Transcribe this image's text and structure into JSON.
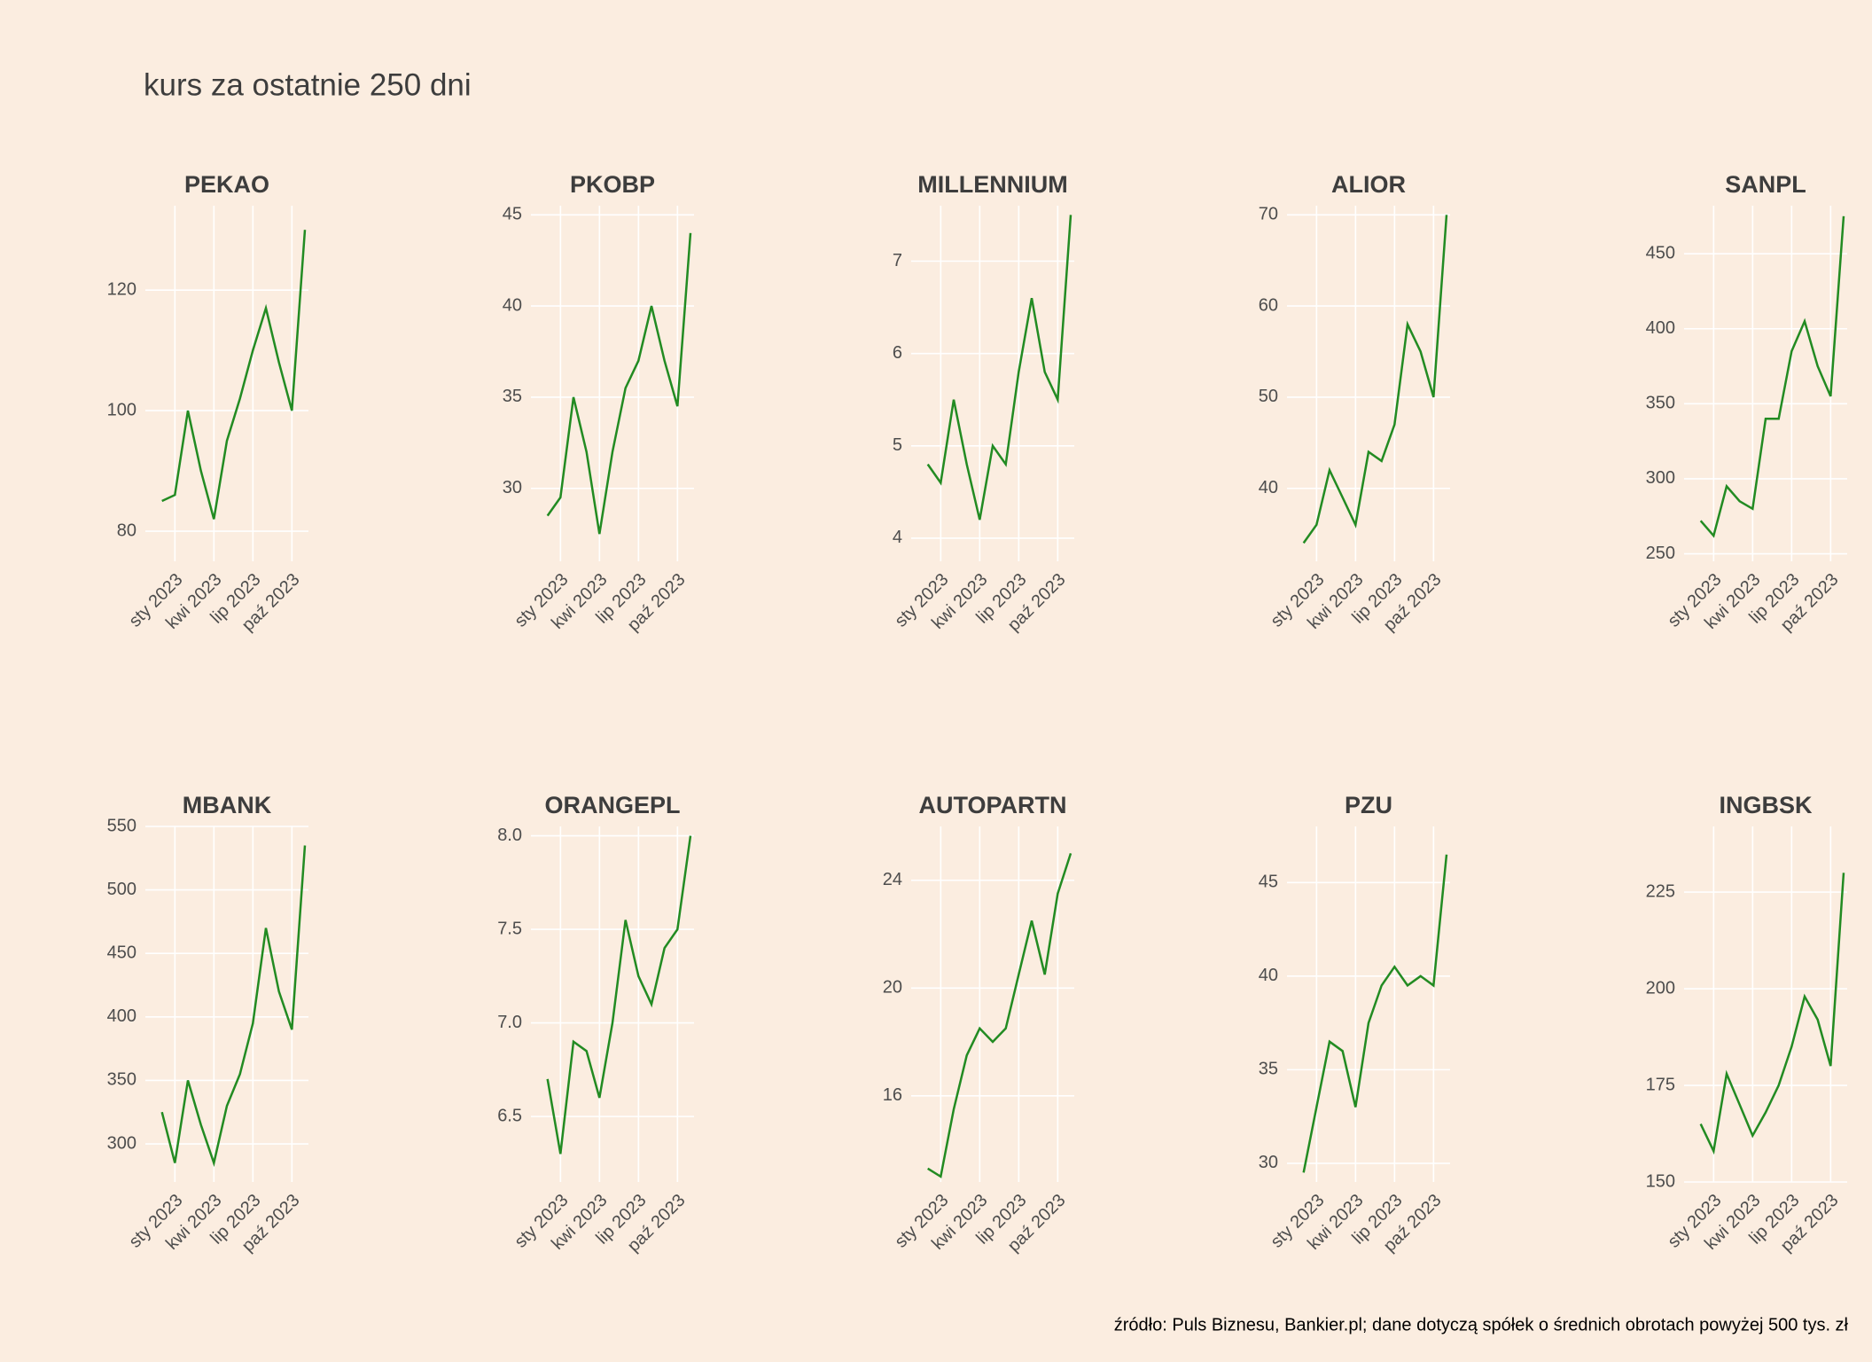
{
  "title": "kurs za ostatnie 250 dni",
  "caption": "źródło: Puls Biznesu, Bankier.pl; dane dotyczą spółek o średnich obrotach powyżej 500 tys. zł",
  "chart_data": [
    {
      "type": "line",
      "title": "PEKAO",
      "color": "#228b22",
      "grid": true,
      "x": [
        "2022-12",
        "2023-01",
        "2023-02",
        "2023-03",
        "2023-04",
        "2023-05",
        "2023-06",
        "2023-07",
        "2023-08",
        "2023-09",
        "2023-10",
        "2023-11"
      ],
      "values": [
        85,
        86,
        100,
        90,
        82,
        95,
        102,
        110,
        117,
        108,
        100,
        130
      ],
      "xlim": [
        "2022-11",
        "2023-11"
      ],
      "ylim": [
        75,
        134
      ],
      "yticks": [
        80,
        100,
        120
      ],
      "xticks": [
        {
          "value": "2023-01",
          "label": "sty 2023"
        },
        {
          "value": "2023-04",
          "label": "kwi 2023"
        },
        {
          "value": "2023-07",
          "label": "lip 2023"
        },
        {
          "value": "2023-10",
          "label": "paź 2023"
        }
      ]
    },
    {
      "type": "line",
      "title": "PKOBP",
      "color": "#228b22",
      "grid": true,
      "x": [
        "2022-12",
        "2023-01",
        "2023-02",
        "2023-03",
        "2023-04",
        "2023-05",
        "2023-06",
        "2023-07",
        "2023-08",
        "2023-09",
        "2023-10",
        "2023-11"
      ],
      "values": [
        28.5,
        29.5,
        35,
        32,
        27.5,
        32,
        35.5,
        37,
        40,
        37,
        34.5,
        44
      ],
      "xlim": [
        "2022-11",
        "2023-11"
      ],
      "ylim": [
        26,
        45.5
      ],
      "yticks": [
        30,
        35,
        40,
        45
      ],
      "xticks": [
        {
          "value": "2023-01",
          "label": "sty 2023"
        },
        {
          "value": "2023-04",
          "label": "kwi 2023"
        },
        {
          "value": "2023-07",
          "label": "lip 2023"
        },
        {
          "value": "2023-10",
          "label": "paź 2023"
        }
      ]
    },
    {
      "type": "line",
      "title": "MILLENNIUM",
      "color": "#228b22",
      "grid": true,
      "x": [
        "2022-12",
        "2023-01",
        "2023-02",
        "2023-03",
        "2023-04",
        "2023-05",
        "2023-06",
        "2023-07",
        "2023-08",
        "2023-09",
        "2023-10",
        "2023-11"
      ],
      "values": [
        4.8,
        4.6,
        5.5,
        4.8,
        4.2,
        5.0,
        4.8,
        5.8,
        6.6,
        5.8,
        5.5,
        7.5
      ],
      "xlim": [
        "2022-11",
        "2023-11"
      ],
      "ylim": [
        3.75,
        7.6
      ],
      "yticks": [
        4,
        5,
        6,
        7
      ],
      "xticks": [
        {
          "value": "2023-01",
          "label": "sty 2023"
        },
        {
          "value": "2023-04",
          "label": "kwi 2023"
        },
        {
          "value": "2023-07",
          "label": "lip 2023"
        },
        {
          "value": "2023-10",
          "label": "paź 2023"
        }
      ]
    },
    {
      "type": "line",
      "title": "ALIOR",
      "color": "#228b22",
      "grid": true,
      "x": [
        "2022-12",
        "2023-01",
        "2023-02",
        "2023-03",
        "2023-04",
        "2023-05",
        "2023-06",
        "2023-07",
        "2023-08",
        "2023-09",
        "2023-10",
        "2023-11"
      ],
      "values": [
        34,
        36,
        42,
        39,
        36,
        44,
        43,
        47,
        58,
        55,
        50,
        70
      ],
      "xlim": [
        "2022-11",
        "2023-11"
      ],
      "ylim": [
        32,
        71
      ],
      "yticks": [
        40,
        50,
        60,
        70
      ],
      "xticks": [
        {
          "value": "2023-01",
          "label": "sty 2023"
        },
        {
          "value": "2023-04",
          "label": "kwi 2023"
        },
        {
          "value": "2023-07",
          "label": "lip 2023"
        },
        {
          "value": "2023-10",
          "label": "paź 2023"
        }
      ]
    },
    {
      "type": "line",
      "title": "SANPL",
      "color": "#228b22",
      "grid": true,
      "x": [
        "2022-12",
        "2023-01",
        "2023-02",
        "2023-03",
        "2023-04",
        "2023-05",
        "2023-06",
        "2023-07",
        "2023-08",
        "2023-09",
        "2023-10",
        "2023-11"
      ],
      "values": [
        272,
        262,
        295,
        285,
        280,
        340,
        340,
        385,
        405,
        375,
        355,
        475
      ],
      "xlim": [
        "2022-11",
        "2023-11"
      ],
      "ylim": [
        245,
        482
      ],
      "yticks": [
        250,
        300,
        350,
        400,
        450
      ],
      "xticks": [
        {
          "value": "2023-01",
          "label": "sty 2023"
        },
        {
          "value": "2023-04",
          "label": "kwi 2023"
        },
        {
          "value": "2023-07",
          "label": "lip 2023"
        },
        {
          "value": "2023-10",
          "label": "paź 2023"
        }
      ]
    },
    {
      "type": "line",
      "title": "MBANK",
      "color": "#228b22",
      "grid": true,
      "x": [
        "2022-12",
        "2023-01",
        "2023-02",
        "2023-03",
        "2023-04",
        "2023-05",
        "2023-06",
        "2023-07",
        "2023-08",
        "2023-09",
        "2023-10",
        "2023-11"
      ],
      "values": [
        325,
        285,
        350,
        315,
        285,
        330,
        355,
        395,
        470,
        420,
        390,
        535
      ],
      "xlim": [
        "2022-11",
        "2023-11"
      ],
      "ylim": [
        270,
        550
      ],
      "yticks": [
        300,
        350,
        400,
        450,
        500,
        550
      ],
      "xticks": [
        {
          "value": "2023-01",
          "label": "sty 2023"
        },
        {
          "value": "2023-04",
          "label": "kwi 2023"
        },
        {
          "value": "2023-07",
          "label": "lip 2023"
        },
        {
          "value": "2023-10",
          "label": "paź 2023"
        }
      ]
    },
    {
      "type": "line",
      "title": "ORANGEPL",
      "color": "#228b22",
      "grid": true,
      "x": [
        "2022-12",
        "2023-01",
        "2023-02",
        "2023-03",
        "2023-04",
        "2023-05",
        "2023-06",
        "2023-07",
        "2023-08",
        "2023-09",
        "2023-10",
        "2023-11"
      ],
      "values": [
        6.7,
        6.3,
        6.9,
        6.85,
        6.6,
        7.0,
        7.55,
        7.25,
        7.1,
        7.4,
        7.5,
        8.0
      ],
      "xlim": [
        "2022-11",
        "2023-11"
      ],
      "ylim": [
        6.15,
        8.05
      ],
      "yticks": [
        6.5,
        {
          "value": 7,
          "label": "7.0"
        },
        7.5,
        {
          "value": 8,
          "label": "8.0"
        }
      ],
      "xticks": [
        {
          "value": "2023-01",
          "label": "sty 2023"
        },
        {
          "value": "2023-04",
          "label": "kwi 2023"
        },
        {
          "value": "2023-07",
          "label": "lip 2023"
        },
        {
          "value": "2023-10",
          "label": "paź 2023"
        }
      ]
    },
    {
      "type": "line",
      "title": "AUTOPARTN",
      "color": "#228b22",
      "grid": true,
      "x": [
        "2022-12",
        "2023-01",
        "2023-02",
        "2023-03",
        "2023-04",
        "2023-05",
        "2023-06",
        "2023-07",
        "2023-08",
        "2023-09",
        "2023-10",
        "2023-11"
      ],
      "values": [
        13.3,
        13.0,
        15.5,
        17.5,
        18.5,
        18.0,
        18.5,
        20.5,
        22.5,
        20.5,
        23.5,
        25
      ],
      "xlim": [
        "2022-11",
        "2023-11"
      ],
      "ylim": [
        12.8,
        26
      ],
      "yticks": [
        16,
        20,
        24
      ],
      "xticks": [
        {
          "value": "2023-01",
          "label": "sty 2023"
        },
        {
          "value": "2023-04",
          "label": "kwi 2023"
        },
        {
          "value": "2023-07",
          "label": "lip 2023"
        },
        {
          "value": "2023-10",
          "label": "paź 2023"
        }
      ]
    },
    {
      "type": "line",
      "title": "PZU",
      "color": "#228b22",
      "grid": true,
      "x": [
        "2022-12",
        "2023-01",
        "2023-02",
        "2023-03",
        "2023-04",
        "2023-05",
        "2023-06",
        "2023-07",
        "2023-08",
        "2023-09",
        "2023-10",
        "2023-11"
      ],
      "values": [
        29.5,
        33,
        36.5,
        36,
        33,
        37.5,
        39.5,
        40.5,
        39.5,
        40,
        39.5,
        46.5
      ],
      "xlim": [
        "2022-11",
        "2023-11"
      ],
      "ylim": [
        29,
        48
      ],
      "yticks": [
        30,
        35,
        40,
        45
      ],
      "xticks": [
        {
          "value": "2023-01",
          "label": "sty 2023"
        },
        {
          "value": "2023-04",
          "label": "kwi 2023"
        },
        {
          "value": "2023-07",
          "label": "lip 2023"
        },
        {
          "value": "2023-10",
          "label": "paź 2023"
        }
      ]
    },
    {
      "type": "line",
      "title": "INGBSK",
      "color": "#228b22",
      "grid": true,
      "x": [
        "2022-12",
        "2023-01",
        "2023-02",
        "2023-03",
        "2023-04",
        "2023-05",
        "2023-06",
        "2023-07",
        "2023-08",
        "2023-09",
        "2023-10",
        "2023-11"
      ],
      "values": [
        165,
        158,
        178,
        170,
        162,
        168,
        175,
        185,
        198,
        192,
        180,
        230
      ],
      "xlim": [
        "2022-11",
        "2023-11"
      ],
      "ylim": [
        150,
        242
      ],
      "yticks": [
        150,
        175,
        200,
        225
      ],
      "xticks": [
        {
          "value": "2023-01",
          "label": "sty 2023"
        },
        {
          "value": "2023-04",
          "label": "kwi 2023"
        },
        {
          "value": "2023-07",
          "label": "lip 2023"
        },
        {
          "value": "2023-10",
          "label": "paź 2023"
        }
      ]
    }
  ]
}
